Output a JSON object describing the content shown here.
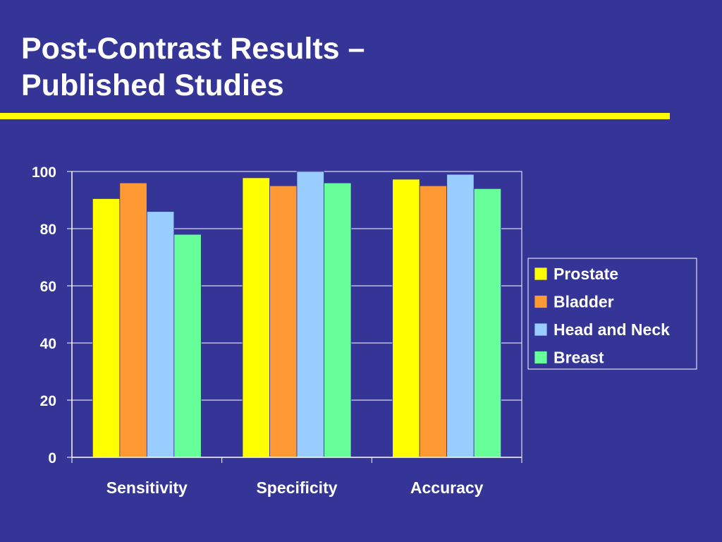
{
  "title_lines": [
    "Post-Contrast Results –",
    "Published Studies"
  ],
  "colors": {
    "background": "#353597",
    "rule": "#ffff00",
    "text": "#ffffff"
  },
  "chart_data": {
    "type": "bar",
    "categories": [
      "Sensitivity",
      "Specificity",
      "Accuracy"
    ],
    "series": [
      {
        "name": "Prostate",
        "color": "#ffff00",
        "values": [
          90.5,
          97.8,
          97.3
        ]
      },
      {
        "name": "Bladder",
        "color": "#ff9933",
        "values": [
          96,
          95,
          95
        ]
      },
      {
        "name": "Head and Neck",
        "color": "#99ccff",
        "values": [
          86,
          100,
          99
        ]
      },
      {
        "name": "Breast",
        "color": "#66ff99",
        "values": [
          78,
          96,
          94
        ]
      }
    ],
    "yticks": [
      0,
      20,
      40,
      60,
      80,
      100
    ],
    "ylim": [
      0,
      100
    ],
    "grid": true,
    "legend": "right"
  }
}
